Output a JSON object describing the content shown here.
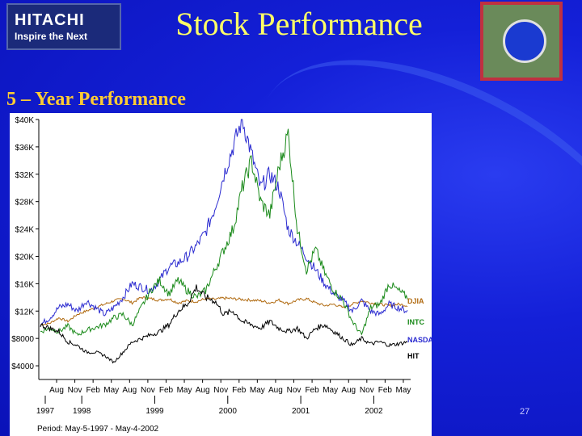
{
  "header": {
    "logo_text": "HITACHI",
    "logo_tagline": "Inspire the Next",
    "title": "Stock Performance",
    "badge_icon": "intel-chip-icon"
  },
  "subtitle": "5 – Year Performance",
  "page_number": "27",
  "chart_data": {
    "type": "line",
    "title": "",
    "xlabel": "",
    "ylabel": "",
    "y_ticks": [
      "$4000",
      "$8000",
      "$12K",
      "$16K",
      "$20K",
      "$24K",
      "$28K",
      "$32K",
      "$36K",
      "$40K"
    ],
    "y_tick_values": [
      4000,
      8000,
      12000,
      16000,
      20000,
      24000,
      28000,
      32000,
      36000,
      40000
    ],
    "ylim": [
      2000,
      40000
    ],
    "x_month_labels": [
      "Aug",
      "Nov",
      "Feb",
      "May",
      "Aug",
      "Nov",
      "Feb",
      "May",
      "Aug",
      "Nov",
      "Feb",
      "May",
      "Aug",
      "Nov",
      "Feb",
      "May",
      "Aug",
      "Nov",
      "Feb",
      "May"
    ],
    "x_year_labels": [
      {
        "label": "1997",
        "month_index": 0
      },
      {
        "label": "1998",
        "month_index": 2
      },
      {
        "label": "1999",
        "month_index": 6
      },
      {
        "label": "2000",
        "month_index": 10
      },
      {
        "label": "2001",
        "month_index": 14
      },
      {
        "label": "2002",
        "month_index": 18
      }
    ],
    "period_label": "Period: May-5-1997 - May-4-2002",
    "grid": false,
    "legend": "right",
    "series": [
      {
        "name": "DJIA",
        "color": "#b06a10",
        "values": [
          10000,
          10200,
          11000,
          10500,
          11500,
          12000,
          12500,
          13000,
          13500,
          13800,
          13200,
          14000,
          13800,
          13600,
          13800,
          13200,
          13500,
          13400,
          13800,
          13700,
          13900,
          13800,
          13700,
          13600,
          13500,
          13200,
          13600,
          13100,
          13600,
          13800,
          13200,
          12800,
          13000,
          12500,
          13000,
          13500,
          13200,
          13000,
          12800,
          13000,
          12800
        ]
      },
      {
        "name": "INTC",
        "color": "#1a8a1a",
        "values": [
          9000,
          9500,
          9000,
          9800,
          8500,
          9200,
          9600,
          10000,
          11000,
          11500,
          10000,
          12500,
          15000,
          16500,
          14500,
          16500,
          15000,
          14000,
          15000,
          18000,
          21000,
          24000,
          30000,
          34000,
          28000,
          26000,
          33000,
          38000,
          24000,
          18000,
          21000,
          17500,
          15000,
          13500,
          10500,
          8500,
          12500,
          13000,
          16000,
          15000,
          14000
        ]
      },
      {
        "name": "NASDAQ",
        "color": "#2a2ad0",
        "values": [
          10000,
          11000,
          12500,
          13000,
          12000,
          13500,
          12500,
          11500,
          12500,
          14000,
          16000,
          15500,
          15000,
          16500,
          18500,
          19000,
          20000,
          21500,
          23500,
          27000,
          32000,
          36000,
          40000,
          35000,
          30000,
          32000,
          30000,
          24000,
          22000,
          20000,
          18000,
          16000,
          14500,
          13500,
          12000,
          13500,
          12000,
          11500,
          13000,
          12500,
          12000
        ]
      },
      {
        "name": "HIT",
        "color": "#000000",
        "values": [
          10000,
          9500,
          9000,
          7500,
          7000,
          6000,
          6000,
          5500,
          4500,
          6000,
          7500,
          8000,
          8500,
          9000,
          10000,
          12000,
          13000,
          15500,
          14000,
          13500,
          11500,
          12000,
          10500,
          10000,
          9500,
          10500,
          9500,
          9000,
          9500,
          8000,
          9500,
          10000,
          9000,
          8000,
          7000,
          8000,
          7200,
          7500,
          7000,
          7200,
          7500
        ]
      }
    ]
  }
}
